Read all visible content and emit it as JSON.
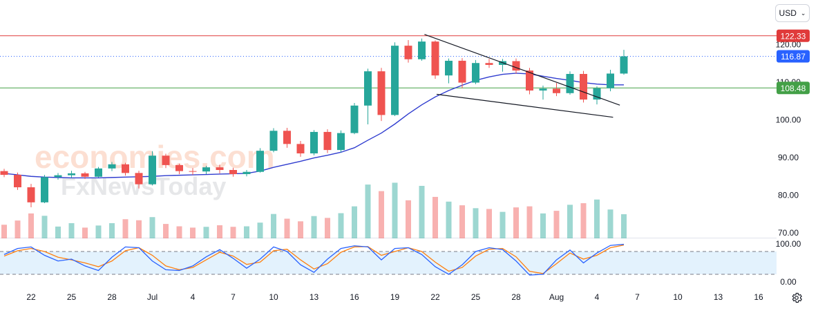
{
  "currency": {
    "label": "USD",
    "icon": "chevron-down-icon"
  },
  "settings": {
    "icon": "gear-icon"
  },
  "colors": {
    "up": "#26a69a",
    "down": "#ef5350",
    "ma": "#2f3ccf",
    "resistance": "#e03a3a",
    "support": "#43a047",
    "current": "#2962ff",
    "stoch_k": "#2962ff",
    "stoch_d": "#ff7f0e",
    "stoch_band": "#e3f2fd",
    "trendline": "#131722",
    "text": "#131722"
  },
  "watermark": {
    "brand": "economies.com",
    "sub": "FxNewsToday"
  },
  "chart_data": {
    "type": "candlestick",
    "price_axis": {
      "ticks": [
        "120.00",
        "110.00",
        "100.00",
        "90.00",
        "80.00",
        "70.00"
      ],
      "tick_values": [
        120,
        110,
        100,
        90,
        80,
        70
      ],
      "ylim": [
        70,
        125
      ]
    },
    "oscillator_axis": {
      "ticks": [
        "100.00",
        "0.00"
      ],
      "tick_values": [
        100,
        0
      ],
      "ylim": [
        0,
        100
      ],
      "overbought": 80,
      "oversold": 20
    },
    "x_axis": {
      "labels": [
        "22",
        "25",
        "28",
        "Jul",
        "4",
        "7",
        "10",
        "13",
        "16",
        "19",
        "22",
        "25",
        "28",
        "Aug",
        "4",
        "7",
        "10",
        "13",
        "16"
      ],
      "label_bars": [
        0,
        3,
        6,
        9,
        12,
        15,
        18,
        21,
        24,
        27,
        30,
        33,
        36,
        39,
        42,
        45,
        48,
        51,
        54
      ]
    },
    "price_levels": [
      {
        "name": "resistance",
        "value": 122.33,
        "label": "122.33",
        "style": "solid"
      },
      {
        "name": "current",
        "value": 116.87,
        "label": "116.87",
        "style": "dotted"
      },
      {
        "name": "support",
        "value": 108.48,
        "label": "108.48",
        "style": "solid"
      }
    ],
    "trendlines": [
      {
        "x1": 31.2,
        "y1": 122.7,
        "x2": 45.7,
        "y2": 103.9
      },
      {
        "x1": 32.1,
        "y1": 106.8,
        "x2": 45.2,
        "y2": 100.7
      }
    ],
    "ohlc": [
      [
        86.4,
        87.0,
        84.8,
        85.4
      ],
      [
        85.4,
        86.0,
        81.4,
        82.1
      ],
      [
        82.1,
        83.0,
        76.8,
        78.1
      ],
      [
        78.1,
        85.4,
        77.9,
        84.8
      ],
      [
        84.8,
        85.9,
        84.1,
        85.3
      ],
      [
        85.3,
        86.5,
        84.6,
        85.8
      ],
      [
        85.8,
        86.2,
        84.3,
        84.9
      ],
      [
        84.9,
        87.5,
        84.7,
        87.1
      ],
      [
        87.1,
        88.8,
        86.4,
        88.2
      ],
      [
        88.2,
        88.6,
        85.2,
        85.9
      ],
      [
        85.9,
        86.5,
        81.8,
        82.9
      ],
      [
        82.9,
        91.7,
        82.6,
        90.5
      ],
      [
        90.5,
        91.0,
        87.2,
        88.0
      ],
      [
        88.0,
        88.4,
        85.6,
        86.4
      ],
      [
        86.4,
        87.2,
        85.4,
        86.3
      ],
      [
        86.3,
        87.8,
        85.6,
        87.4
      ],
      [
        87.4,
        88.1,
        85.8,
        86.7
      ],
      [
        86.7,
        87.3,
        84.9,
        85.6
      ],
      [
        85.6,
        86.7,
        85.0,
        86.2
      ],
      [
        86.2,
        92.5,
        86.0,
        91.8
      ],
      [
        91.8,
        97.8,
        91.4,
        97.1
      ],
      [
        97.1,
        97.9,
        92.6,
        93.6
      ],
      [
        93.6,
        94.4,
        90.2,
        91.1
      ],
      [
        91.1,
        97.3,
        90.6,
        96.8
      ],
      [
        96.8,
        97.5,
        91.2,
        92.0
      ],
      [
        92.0,
        97.2,
        91.4,
        96.5
      ],
      [
        96.5,
        104.5,
        96.2,
        103.8
      ],
      [
        103.8,
        113.6,
        98.8,
        112.9
      ],
      [
        112.9,
        113.8,
        99.7,
        101.3
      ],
      [
        101.3,
        120.6,
        101.0,
        119.7
      ],
      [
        119.7,
        121.2,
        115.2,
        116.1
      ],
      [
        116.1,
        121.6,
        115.7,
        120.8
      ],
      [
        120.8,
        121.1,
        110.9,
        111.8
      ],
      [
        111.8,
        116.3,
        109.7,
        115.7
      ],
      [
        115.7,
        116.4,
        108.4,
        109.9
      ],
      [
        109.9,
        115.9,
        109.5,
        115.1
      ],
      [
        115.1,
        116.2,
        113.8,
        114.6
      ],
      [
        114.6,
        116.2,
        112.8,
        115.6
      ],
      [
        115.6,
        116.3,
        112.3,
        113.1
      ],
      [
        113.1,
        113.8,
        106.8,
        107.8
      ],
      [
        107.8,
        109.1,
        105.4,
        108.3
      ],
      [
        108.3,
        109.8,
        106.3,
        107.1
      ],
      [
        107.1,
        112.9,
        106.7,
        112.2
      ],
      [
        112.2,
        113.0,
        104.6,
        105.4
      ],
      [
        105.4,
        108.9,
        104.1,
        108.4
      ],
      [
        108.4,
        113.3,
        107.6,
        112.3
      ],
      [
        112.3,
        118.6,
        112.0,
        116.87
      ]
    ],
    "moving_average": [
      85.8,
      85.4,
      85.0,
      84.8,
      84.7,
      84.6,
      84.6,
      84.6,
      84.7,
      84.8,
      84.9,
      85.0,
      85.2,
      85.3,
      85.4,
      85.5,
      85.6,
      85.7,
      85.8,
      86.4,
      87.4,
      88.2,
      89.0,
      89.9,
      90.6,
      91.4,
      92.6,
      94.6,
      96.5,
      98.9,
      101.6,
      104.0,
      106.1,
      107.8,
      109.2,
      110.5,
      111.4,
      112.1,
      112.4,
      112.2,
      111.6,
      111.0,
      110.5,
      109.9,
      109.5,
      109.3,
      109.3
    ],
    "volume": [
      52,
      68,
      95,
      86,
      45,
      58,
      41,
      49,
      58,
      73,
      69,
      81,
      55,
      46,
      41,
      44,
      50,
      44,
      46,
      60,
      93,
      75,
      65,
      85,
      78,
      96,
      122,
      205,
      180,
      212,
      145,
      200,
      158,
      140,
      126,
      115,
      112,
      101,
      118,
      122,
      95,
      105,
      128,
      134,
      148,
      110,
      92
    ],
    "stoch_k": [
      72,
      88,
      92,
      70,
      55,
      60,
      42,
      30,
      65,
      92,
      90,
      55,
      32,
      30,
      42,
      66,
      85,
      62,
      36,
      60,
      92,
      80,
      45,
      25,
      60,
      88,
      95,
      92,
      58,
      88,
      90,
      72,
      40,
      20,
      45,
      80,
      90,
      85,
      55,
      18,
      20,
      58,
      84,
      50,
      76,
      96,
      99
    ],
    "stoch_d": [
      68,
      82,
      88,
      80,
      65,
      58,
      50,
      40,
      55,
      82,
      90,
      70,
      42,
      32,
      38,
      58,
      78,
      68,
      46,
      52,
      82,
      86,
      58,
      34,
      48,
      78,
      92,
      93,
      70,
      80,
      90,
      80,
      52,
      28,
      38,
      68,
      86,
      88,
      66,
      28,
      22,
      48,
      76,
      60,
      70,
      90,
      97
    ]
  }
}
